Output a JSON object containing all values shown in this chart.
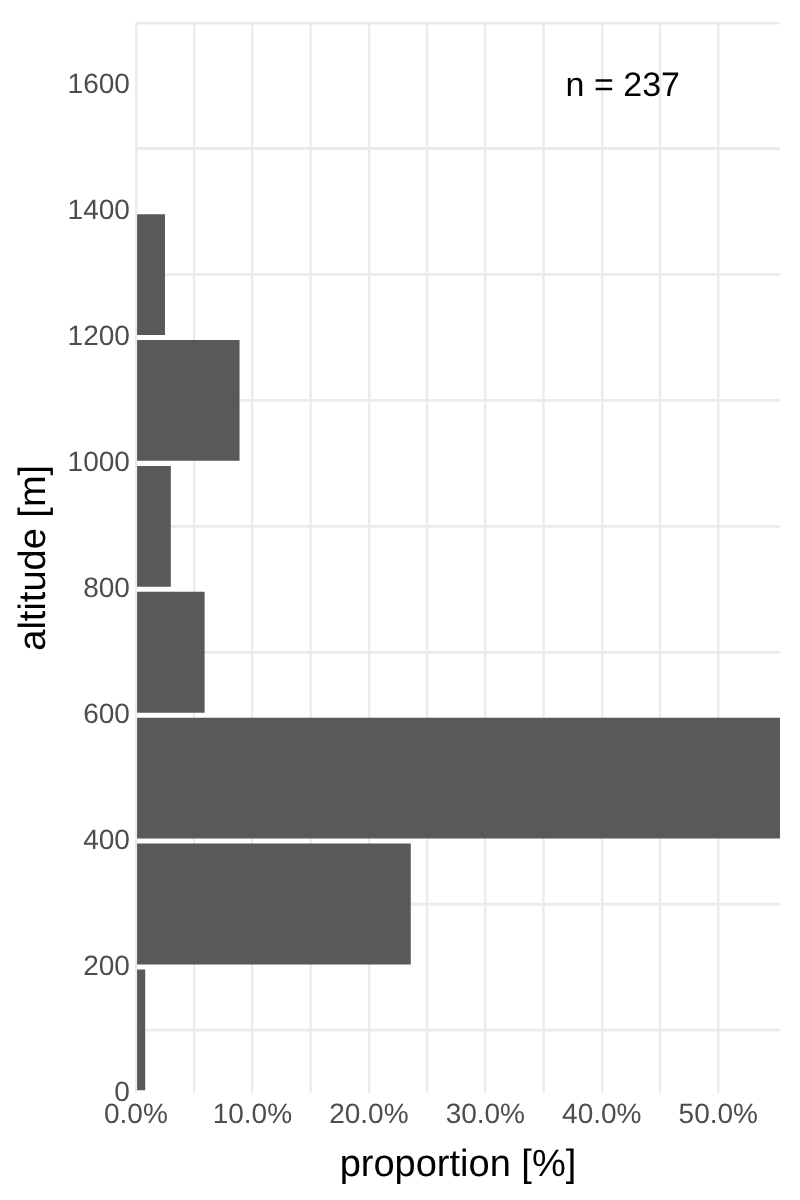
{
  "chart_data": {
    "type": "histogram",
    "orientation": "horizontal",
    "xlabel": "proportion [%]",
    "ylabel": "altitude [m]",
    "annotations": [
      "n = 237"
    ],
    "bins": [
      0,
      200,
      400,
      600,
      800,
      1000,
      1200,
      1400
    ],
    "values": [
      0.8,
      23.6,
      55.3,
      5.9,
      3.0,
      8.9,
      2.5
    ],
    "color": "#595959",
    "xlim": [
      0,
      55.3
    ],
    "xticks": [
      {
        "value": 0,
        "label": "0.0%"
      },
      {
        "value": 5,
        "label": null
      },
      {
        "value": 10,
        "label": "10.0%"
      },
      {
        "value": 15,
        "label": null
      },
      {
        "value": 20,
        "label": "20.0%"
      },
      {
        "value": 25,
        "label": null
      },
      {
        "value": 30,
        "label": "30.0%"
      },
      {
        "value": 35,
        "label": null
      },
      {
        "value": 40,
        "label": "40.0%"
      },
      {
        "value": 45,
        "label": null
      },
      {
        "value": 50,
        "label": "50.0%"
      }
    ],
    "ylim": [
      0,
      1700
    ],
    "yticks": [
      0,
      {
        "value": 100,
        "label": null
      },
      200,
      {
        "value": 300,
        "label": null
      },
      400,
      600,
      {
        "value": 700,
        "label": null
      },
      800,
      {
        "value": 900,
        "label": null
      },
      1000,
      {
        "value": 1100,
        "label": null
      },
      1200,
      {
        "value": 1300,
        "label": null
      },
      1400,
      {
        "value": 1500,
        "label": null
      },
      1600
    ],
    "grid": true
  }
}
